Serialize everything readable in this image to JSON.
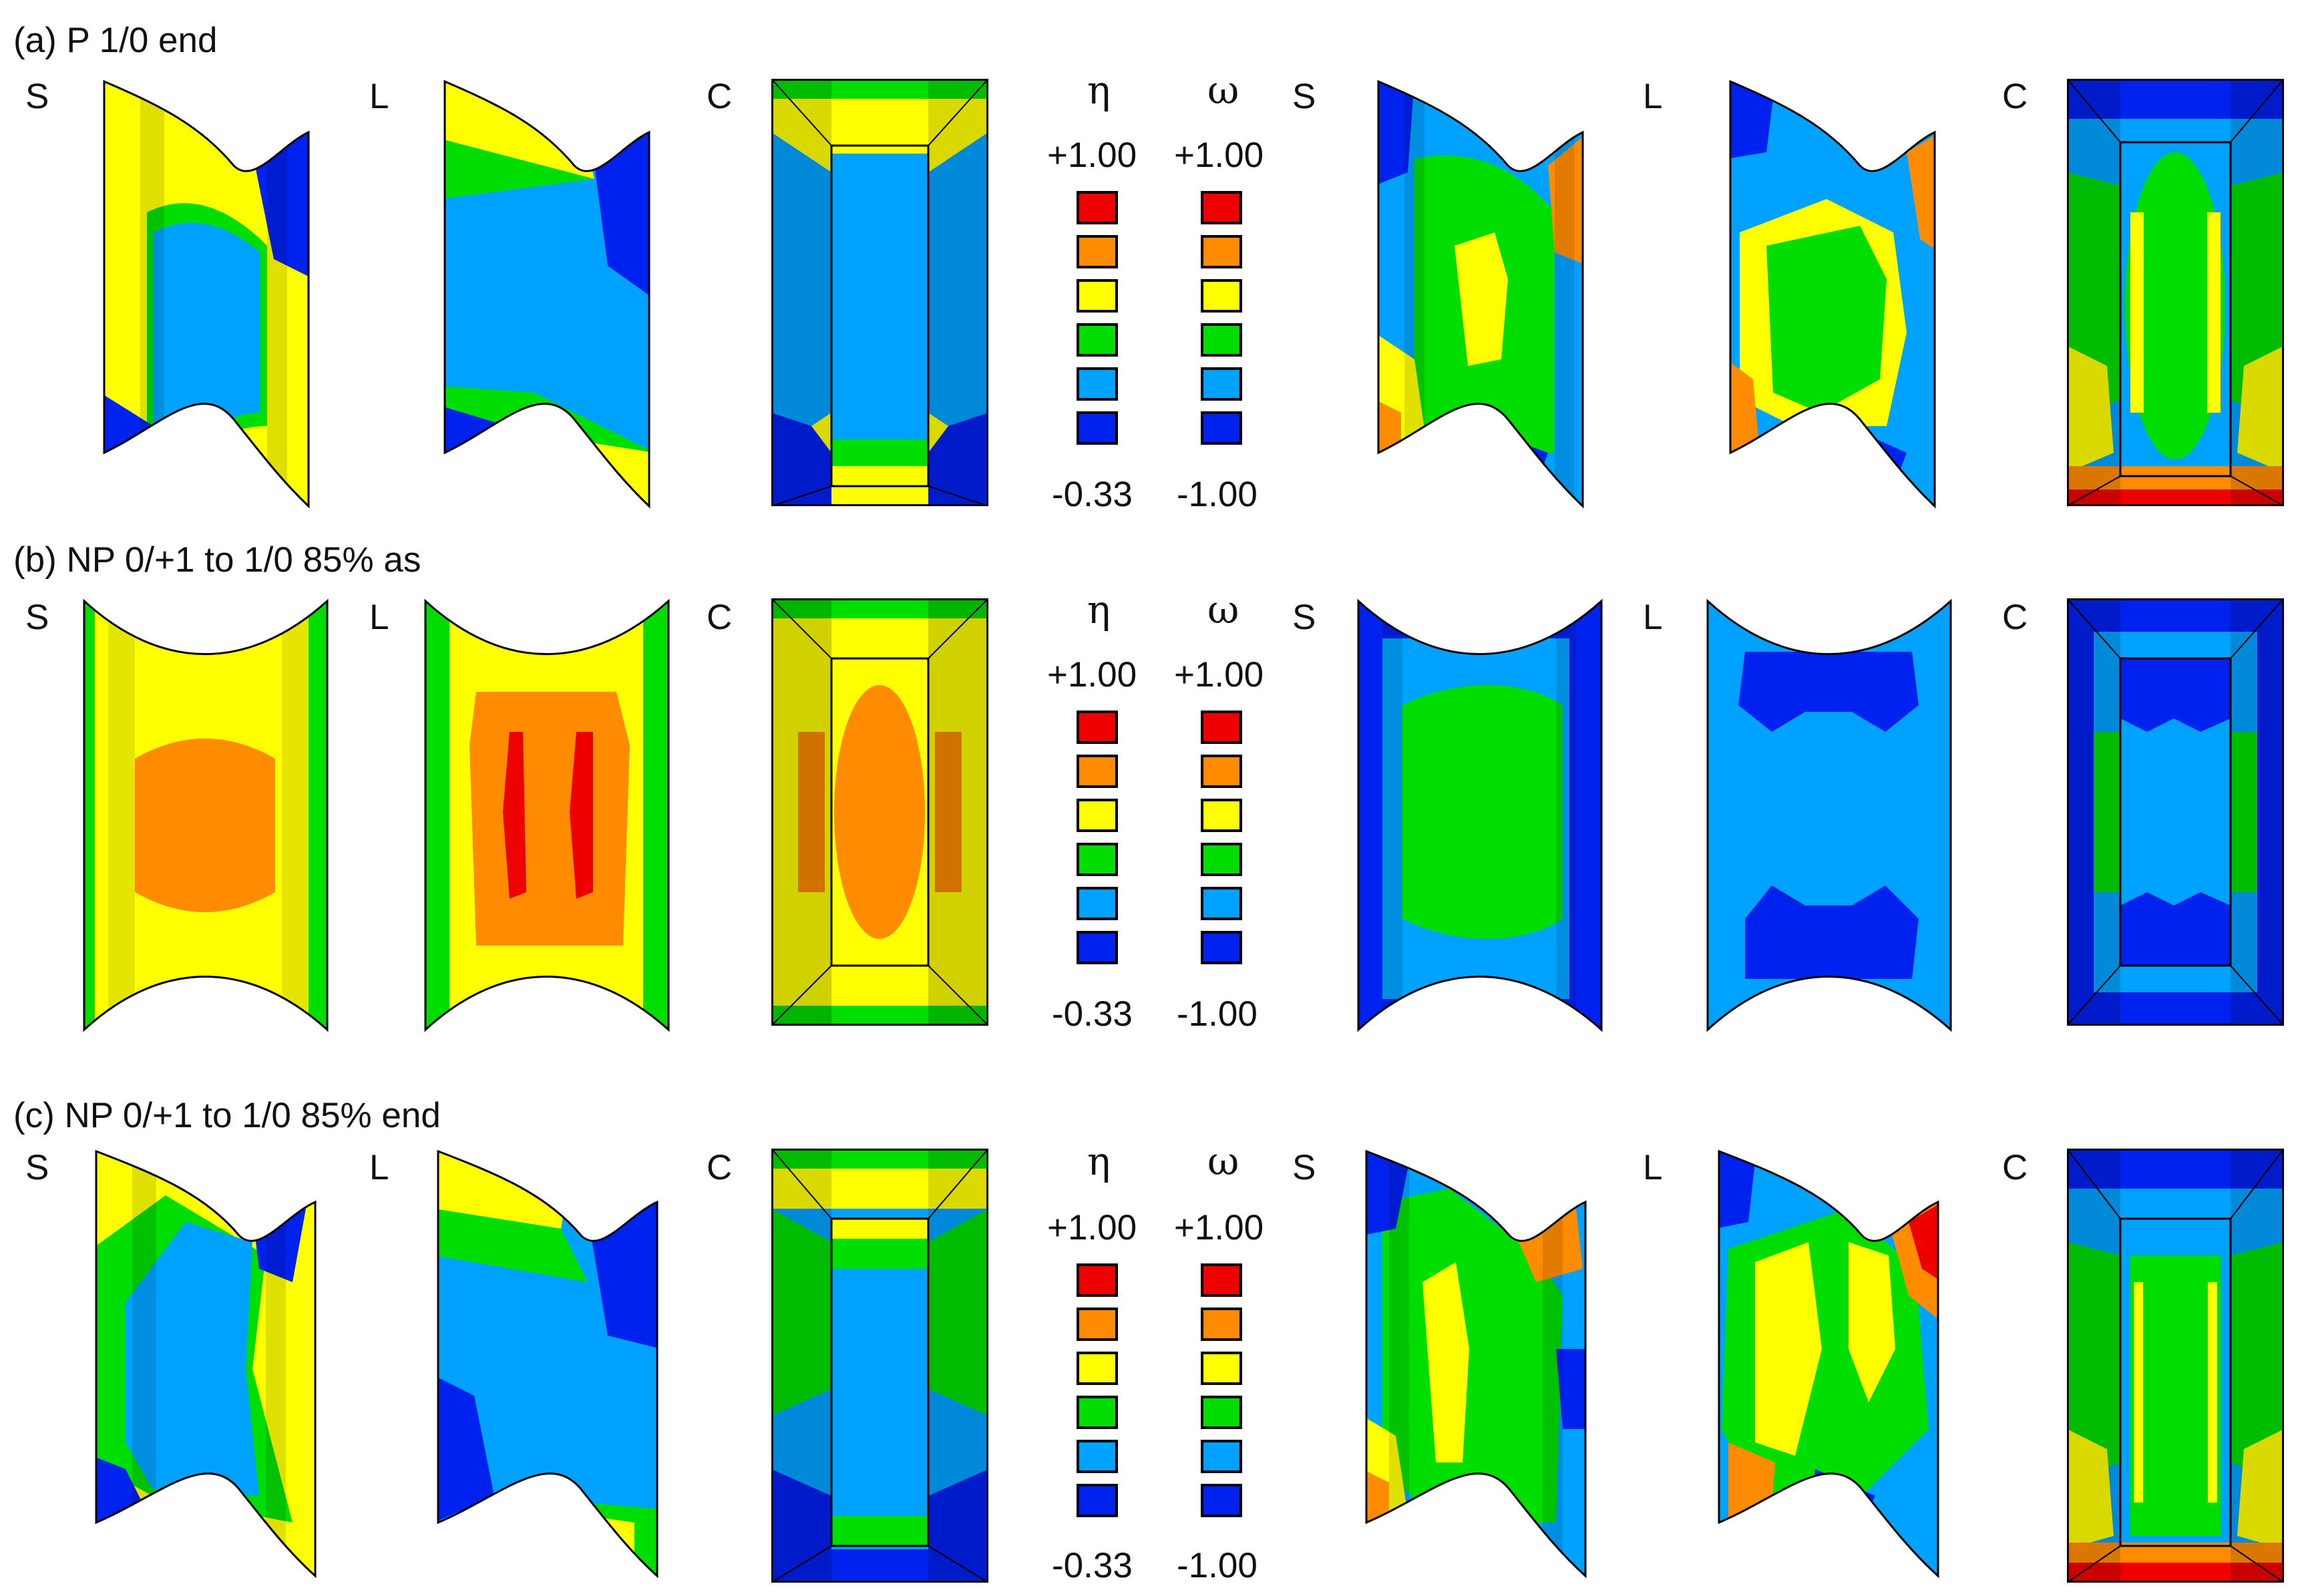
{
  "rows": [
    {
      "title": "(a) P 1/0 end",
      "views": [
        "S",
        "L",
        "C",
        "S",
        "L",
        "C"
      ],
      "legend": {
        "eta_symbol": "η",
        "omega_symbol": "ω",
        "eta_max": "+1.00",
        "omega_max": "+1.00",
        "eta_min": "-0.33",
        "omega_min": "-1.00"
      }
    },
    {
      "title": "(b) NP 0/+1 to 1/0 85% as",
      "views": [
        "S",
        "L",
        "C",
        "S",
        "L",
        "C"
      ],
      "legend": {
        "eta_symbol": "η",
        "omega_symbol": "ω",
        "eta_max": "+1.00",
        "omega_max": "+1.00",
        "eta_min": "-0.33",
        "omega_min": "-1.00"
      }
    },
    {
      "title": "(c) NP 0/+1 to 1/0 85% end",
      "views": [
        "S",
        "L",
        "C",
        "S",
        "L",
        "C"
      ],
      "legend": {
        "eta_symbol": "η",
        "omega_symbol": "ω",
        "eta_max": "+1.00",
        "omega_max": "+1.00",
        "eta_min": "-0.33",
        "omega_min": "-1.00"
      }
    }
  ],
  "legend_colors": [
    "#ee0000",
    "#ff8c00",
    "#ffff00",
    "#00dd00",
    "#00a2ff",
    "#0022ee"
  ],
  "panel_colors": {
    "row_a": {
      "eta": {
        "S": [
          "#ffff00",
          "#00a2ff",
          "#0022ee"
        ],
        "L": [
          "#00a2ff",
          "#ffff00",
          "#0022ee"
        ],
        "C": [
          "#00a2ff",
          "#ffff00",
          "#0022ee"
        ]
      },
      "omega": {
        "S": [
          "#00dd00",
          "#00a2ff",
          "#ff8c00"
        ],
        "L": [
          "#00dd00",
          "#00a2ff",
          "#ff8c00"
        ],
        "C": [
          "#00dd00",
          "#00a2ff",
          "#ee0000"
        ]
      }
    },
    "row_b": {
      "eta": {
        "S": [
          "#ff8c00",
          "#ffff00",
          "#00dd00"
        ],
        "L": [
          "#ff8c00",
          "#ffff00",
          "#ee0000"
        ],
        "C": [
          "#ff8c00",
          "#ffff00",
          "#00dd00"
        ]
      },
      "omega": {
        "S": [
          "#00dd00",
          "#00a2ff",
          "#0022ee"
        ],
        "L": [
          "#00a2ff",
          "#00a2ff",
          "#0022ee"
        ],
        "C": [
          "#00a2ff",
          "#0022ee",
          "#00dd00"
        ]
      }
    },
    "row_c": {
      "eta": {
        "S": [
          "#00a2ff",
          "#00dd00",
          "#ffff00"
        ],
        "L": [
          "#00a2ff",
          "#00dd00",
          "#0022ee"
        ],
        "C": [
          "#00a2ff",
          "#00dd00",
          "#0022ee"
        ]
      },
      "omega": {
        "S": [
          "#00dd00",
          "#00a2ff",
          "#ff8c00"
        ],
        "L": [
          "#00dd00",
          "#ffff00",
          "#ee0000"
        ],
        "C": [
          "#00dd00",
          "#00a2ff",
          "#ee0000"
        ]
      }
    }
  }
}
